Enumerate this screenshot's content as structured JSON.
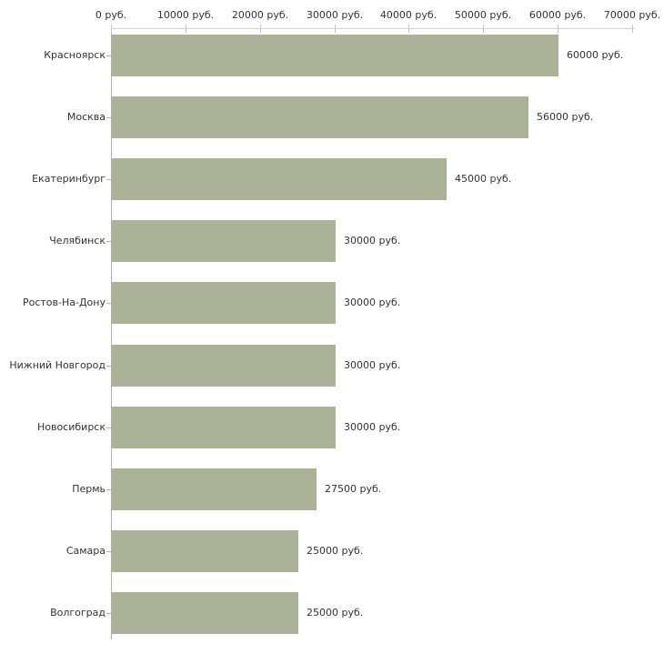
{
  "chart_data": {
    "type": "bar",
    "orientation": "horizontal",
    "title": "",
    "categories": [
      "Красноярск",
      "Москва",
      "Екатеринбург",
      "Челябинск",
      "Ростов-На-Дону",
      "Нижний Новгород",
      "Новосибирск",
      "Пермь",
      "Самара",
      "Волгоград"
    ],
    "values": [
      60000,
      56000,
      45000,
      30000,
      30000,
      30000,
      30000,
      27500,
      25000,
      25000
    ],
    "value_labels": [
      "60000 руб.",
      "56000 руб.",
      "45000 руб.",
      "30000 руб.",
      "30000 руб.",
      "30000 руб.",
      "30000 руб.",
      "27500 руб.",
      "25000 руб.",
      "25000 руб."
    ],
    "unit": "руб.",
    "x_axis": {
      "position": "top",
      "min": 0,
      "max": 70000,
      "tick_values": [
        0,
        10000,
        20000,
        30000,
        40000,
        50000,
        60000,
        70000
      ],
      "tick_labels": [
        "0 руб.",
        "10000 руб.",
        "20000 руб.",
        "30000 руб.",
        "40000 руб.",
        "50000 руб.",
        "60000 руб.",
        "70000 руб."
      ]
    },
    "grid": false,
    "legend": false,
    "colors": {
      "bar": "#acb297",
      "top_axis_line": "#d9d7c0",
      "tick_mark": "#c9c6a8",
      "left_axis_line": "#b0b0b0",
      "category_tick": "#b5b3a0",
      "text": "#333333",
      "background": "#ffffff"
    }
  }
}
